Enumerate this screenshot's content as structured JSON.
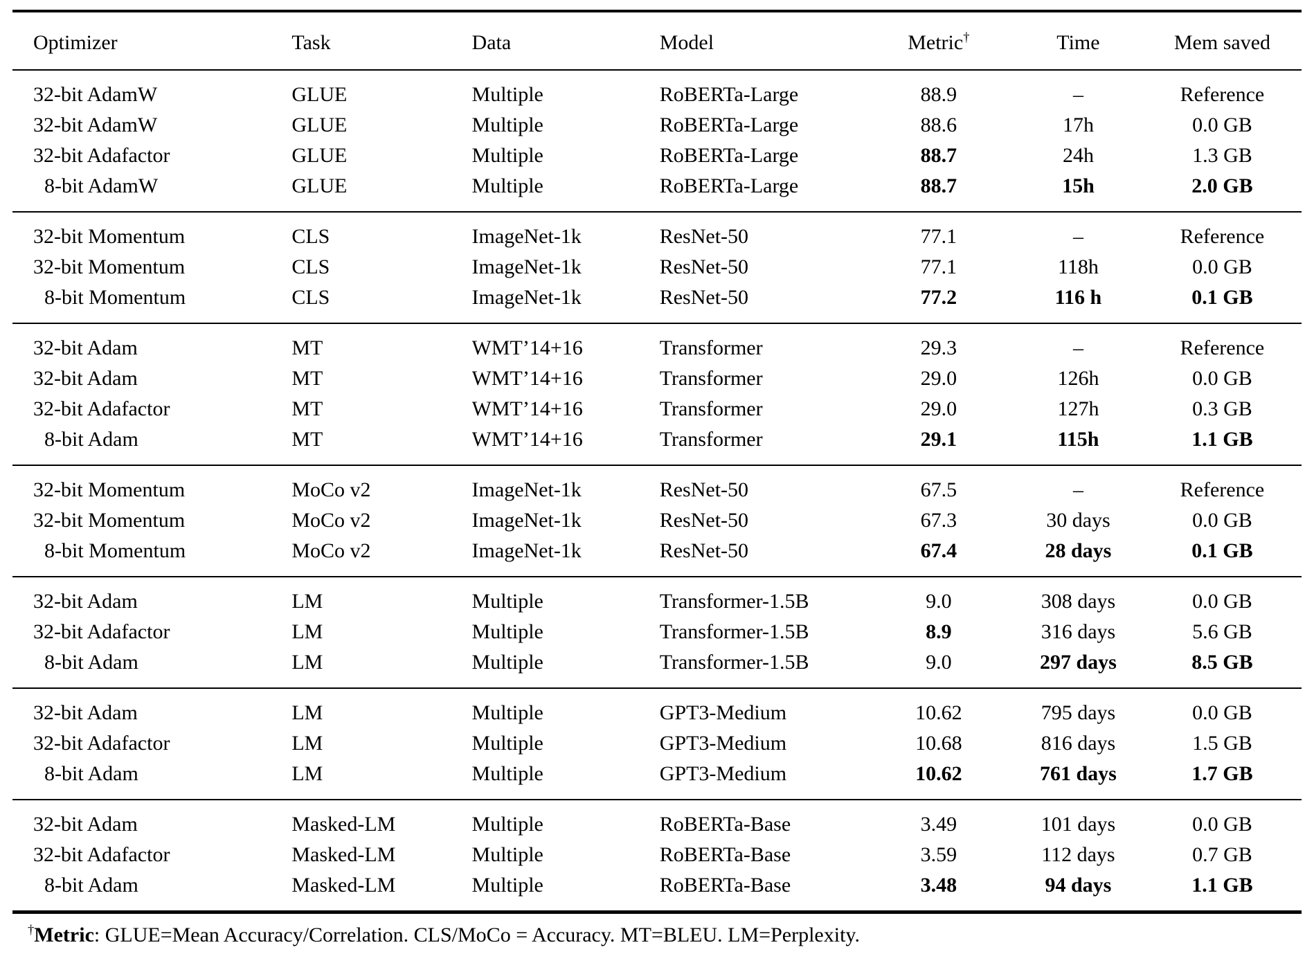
{
  "page": {
    "background": "#ffffff",
    "text_color": "#000000"
  },
  "table": {
    "columns": [
      {
        "key": "optimizer",
        "label": "Optimizer",
        "align": "left"
      },
      {
        "key": "task",
        "label": "Task",
        "align": "left"
      },
      {
        "key": "data",
        "label": "Data",
        "align": "left"
      },
      {
        "key": "model",
        "label": "Model",
        "align": "left"
      },
      {
        "key": "metric",
        "label": "Metric",
        "superscript": "†",
        "align": "center"
      },
      {
        "key": "time",
        "label": "Time",
        "align": "center"
      },
      {
        "key": "mem",
        "label": "Mem saved",
        "align": "center"
      }
    ],
    "groups": [
      {
        "rows": [
          {
            "optimizer": "32-bit AdamW",
            "task": "GLUE",
            "data": "Multiple",
            "model": "RoBERTa-Large",
            "metric": "88.9",
            "time": "–",
            "mem": "Reference",
            "bold": []
          },
          {
            "optimizer": "32-bit AdamW",
            "task": "GLUE",
            "data": "Multiple",
            "model": "RoBERTa-Large",
            "metric": "88.6",
            "time": "17h",
            "mem": "0.0 GB",
            "bold": []
          },
          {
            "optimizer": "32-bit Adafactor",
            "task": "GLUE",
            "data": "Multiple",
            "model": "RoBERTa-Large",
            "metric": "88.7",
            "time": "24h",
            "mem": "1.3 GB",
            "bold": [
              "metric"
            ]
          },
          {
            "optimizer": "8-bit AdamW",
            "task": "GLUE",
            "data": "Multiple",
            "model": "RoBERTa-Large",
            "metric": "88.7",
            "time": "15h",
            "mem": "2.0 GB",
            "bold": [
              "metric",
              "time",
              "mem"
            ]
          }
        ]
      },
      {
        "rows": [
          {
            "optimizer": "32-bit Momentum",
            "task": "CLS",
            "data": "ImageNet-1k",
            "model": "ResNet-50",
            "metric": "77.1",
            "time": "–",
            "mem": "Reference",
            "bold": []
          },
          {
            "optimizer": "32-bit Momentum",
            "task": "CLS",
            "data": "ImageNet-1k",
            "model": "ResNet-50",
            "metric": "77.1",
            "time": "118h",
            "mem": "0.0 GB",
            "bold": []
          },
          {
            "optimizer": "8-bit Momentum",
            "task": "CLS",
            "data": "ImageNet-1k",
            "model": "ResNet-50",
            "metric": "77.2",
            "time": "116 h",
            "mem": "0.1 GB",
            "bold": [
              "metric",
              "time",
              "mem"
            ]
          }
        ]
      },
      {
        "rows": [
          {
            "optimizer": "32-bit Adam",
            "task": "MT",
            "data": "WMT’14+16",
            "model": "Transformer",
            "metric": "29.3",
            "time": "–",
            "mem": "Reference",
            "bold": []
          },
          {
            "optimizer": "32-bit Adam",
            "task": "MT",
            "data": "WMT’14+16",
            "model": "Transformer",
            "metric": "29.0",
            "time": "126h",
            "mem": "0.0 GB",
            "bold": []
          },
          {
            "optimizer": "32-bit Adafactor",
            "task": "MT",
            "data": "WMT’14+16",
            "model": "Transformer",
            "metric": "29.0",
            "time": "127h",
            "mem": "0.3 GB",
            "bold": []
          },
          {
            "optimizer": "8-bit Adam",
            "task": "MT",
            "data": "WMT’14+16",
            "model": "Transformer",
            "metric": "29.1",
            "time": "115h",
            "mem": "1.1 GB",
            "bold": [
              "metric",
              "time",
              "mem"
            ]
          }
        ]
      },
      {
        "rows": [
          {
            "optimizer": "32-bit Momentum",
            "task": "MoCo v2",
            "data": "ImageNet-1k",
            "model": "ResNet-50",
            "metric": "67.5",
            "time": "–",
            "mem": "Reference",
            "bold": []
          },
          {
            "optimizer": "32-bit Momentum",
            "task": "MoCo v2",
            "data": "ImageNet-1k",
            "model": "ResNet-50",
            "metric": "67.3",
            "time": "30 days",
            "mem": "0.0 GB",
            "bold": []
          },
          {
            "optimizer": "8-bit Momentum",
            "task": "MoCo v2",
            "data": "ImageNet-1k",
            "model": "ResNet-50",
            "metric": "67.4",
            "time": "28 days",
            "mem": "0.1 GB",
            "bold": [
              "metric",
              "time",
              "mem"
            ]
          }
        ]
      },
      {
        "rows": [
          {
            "optimizer": "32-bit Adam",
            "task": "LM",
            "data": "Multiple",
            "model": "Transformer-1.5B",
            "metric": "9.0",
            "time": "308 days",
            "mem": "0.0 GB",
            "bold": []
          },
          {
            "optimizer": "32-bit Adafactor",
            "task": "LM",
            "data": "Multiple",
            "model": "Transformer-1.5B",
            "metric": "8.9",
            "time": "316 days",
            "mem": "5.6 GB",
            "bold": [
              "metric"
            ]
          },
          {
            "optimizer": "8-bit Adam",
            "task": "LM",
            "data": "Multiple",
            "model": "Transformer-1.5B",
            "metric": "9.0",
            "time": "297 days",
            "mem": "8.5 GB",
            "bold": [
              "time",
              "mem"
            ]
          }
        ]
      },
      {
        "rows": [
          {
            "optimizer": "32-bit Adam",
            "task": "LM",
            "data": "Multiple",
            "model": "GPT3-Medium",
            "metric": "10.62",
            "time": "795 days",
            "mem": "0.0 GB",
            "bold": []
          },
          {
            "optimizer": "32-bit Adafactor",
            "task": "LM",
            "data": "Multiple",
            "model": "GPT3-Medium",
            "metric": "10.68",
            "time": "816 days",
            "mem": "1.5 GB",
            "bold": []
          },
          {
            "optimizer": "8-bit Adam",
            "task": "LM",
            "data": "Multiple",
            "model": "GPT3-Medium",
            "metric": "10.62",
            "time": "761 days",
            "mem": "1.7 GB",
            "bold": [
              "metric",
              "time",
              "mem"
            ]
          }
        ]
      },
      {
        "rows": [
          {
            "optimizer": "32-bit Adam",
            "task": "Masked-LM",
            "data": "Multiple",
            "model": "RoBERTa-Base",
            "metric": "3.49",
            "time": "101 days",
            "mem": "0.0 GB",
            "bold": []
          },
          {
            "optimizer": "32-bit Adafactor",
            "task": "Masked-LM",
            "data": "Multiple",
            "model": "RoBERTa-Base",
            "metric": "3.59",
            "time": "112 days",
            "mem": "0.7 GB",
            "bold": []
          },
          {
            "optimizer": "8-bit Adam",
            "task": "Masked-LM",
            "data": "Multiple",
            "model": "RoBERTa-Base",
            "metric": "3.48",
            "time": "94 days",
            "mem": "1.1 GB",
            "bold": [
              "metric",
              "time",
              "mem"
            ]
          }
        ]
      }
    ]
  },
  "footnote": {
    "dagger": "†",
    "term": "Metric",
    "text": ": GLUE=Mean Accuracy/Correlation. CLS/MoCo = Accuracy. MT=BLEU. LM=Perplexity."
  }
}
